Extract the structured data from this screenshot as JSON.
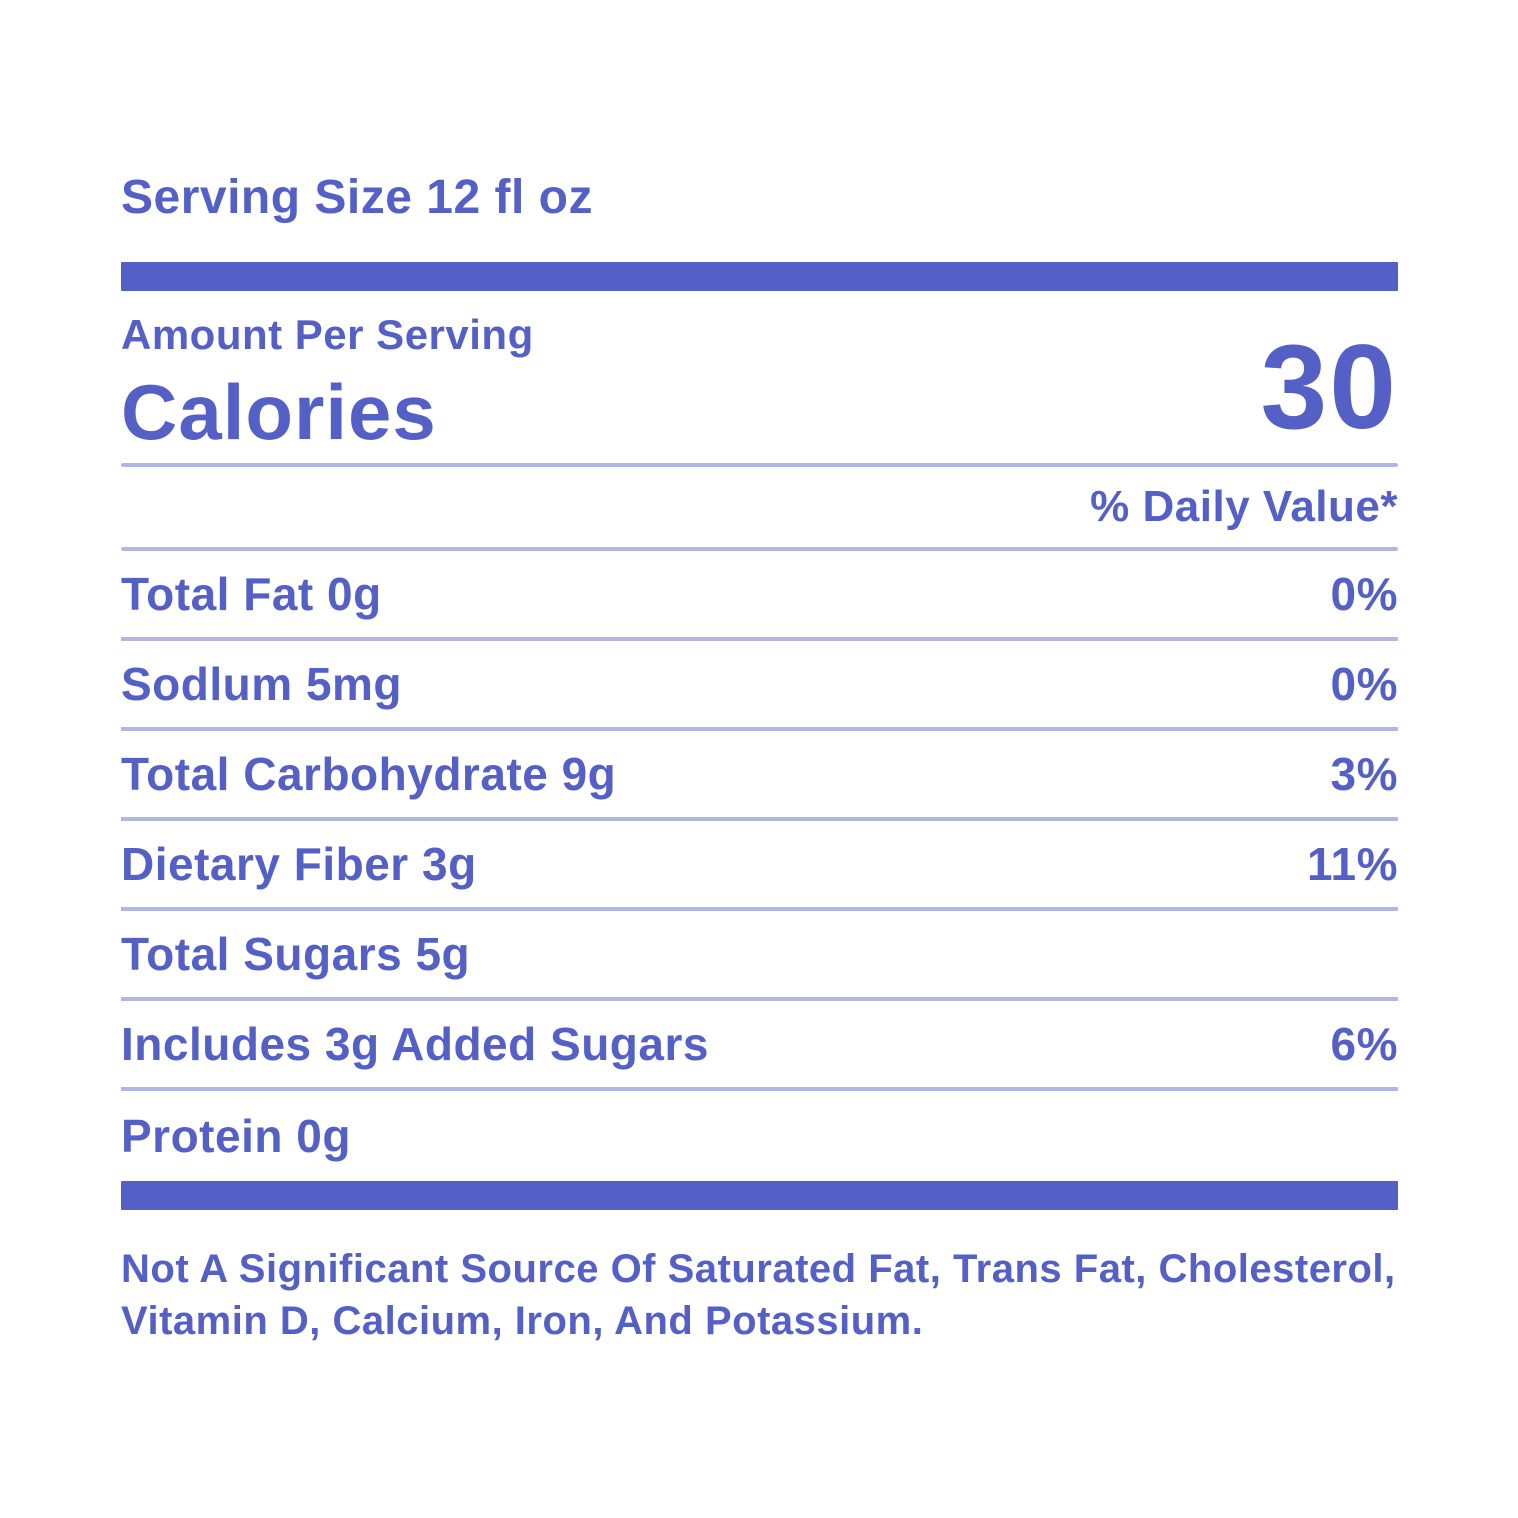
{
  "colors": {
    "accent": "#5560C7",
    "divider": "#B2B6E4",
    "background": "#FFFFFF"
  },
  "serving_size": "Serving Size 12 fl oz",
  "amount_per_serving": "Amount Per Serving",
  "calories": {
    "label": "Calories",
    "value": "30"
  },
  "daily_value_header": "% Daily Value*",
  "rows": [
    {
      "label": "Total Fat 0g",
      "value": "0%"
    },
    {
      "label": "Sodlum 5mg",
      "value": "0%"
    },
    {
      "label": "Total Carbohydrate 9g",
      "value": "3%"
    },
    {
      "label": "Dietary Fiber 3g",
      "value": "11%"
    },
    {
      "label": "Total Sugars 5g",
      "value": ""
    },
    {
      "label": "Includes 3g Added Sugars",
      "value": "6%"
    },
    {
      "label": "Protein 0g",
      "value": ""
    }
  ],
  "footnote": {
    "line1": "Not A Significant Source Of Saturated Fat, Trans Fat, Cholesterol,",
    "line2": "Vitamin D, Calcium, Iron, And Potassium."
  }
}
